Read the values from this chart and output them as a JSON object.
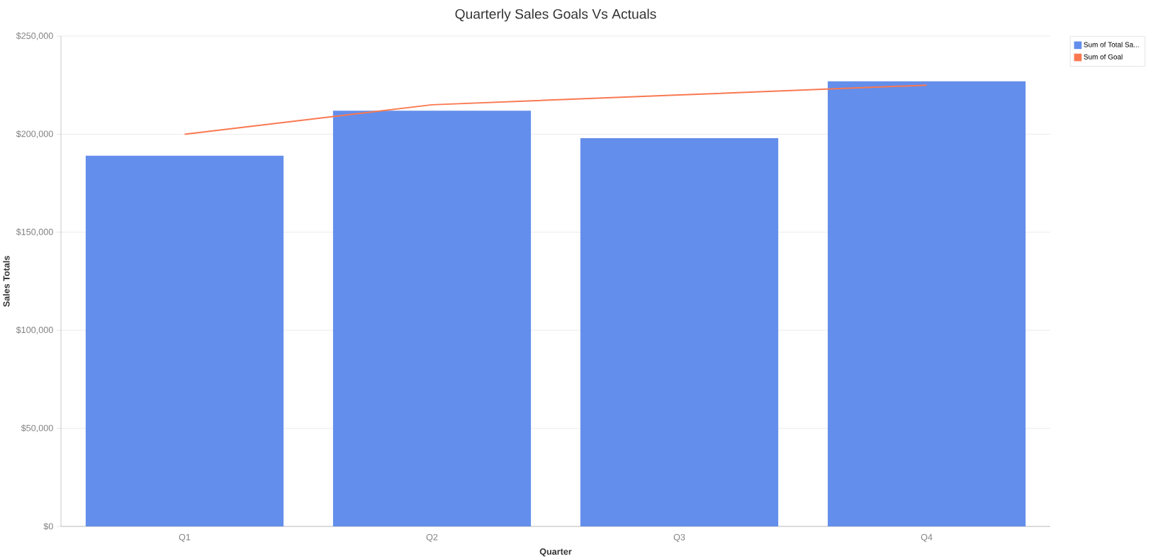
{
  "chart_data": {
    "type": "bar",
    "title": "Quarterly Sales Goals Vs Actuals",
    "xlabel": "Quarter",
    "ylabel": "Sales Totals",
    "categories": [
      "Q1",
      "Q2",
      "Q3",
      "Q4"
    ],
    "series": [
      {
        "name": "Sum of Total Sa...",
        "color": "#648eeb",
        "values": [
          189000,
          212000,
          198000,
          227000
        ]
      },
      {
        "name": "Sum of Goal",
        "type": "line",
        "color": "#fa7850",
        "values": [
          200000,
          215000,
          220000,
          225000
        ]
      }
    ],
    "ylim": [
      0,
      250000
    ],
    "yticks": [
      {
        "value": 0,
        "label": "$0"
      },
      {
        "value": 50000,
        "label": "$50,000"
      },
      {
        "value": 100000,
        "label": "$100,000"
      },
      {
        "value": 150000,
        "label": "$150,000"
      },
      {
        "value": 200000,
        "label": "$200,000"
      },
      {
        "value": 250000,
        "label": "$250,000"
      }
    ],
    "grid": "y",
    "legend": "top right"
  }
}
